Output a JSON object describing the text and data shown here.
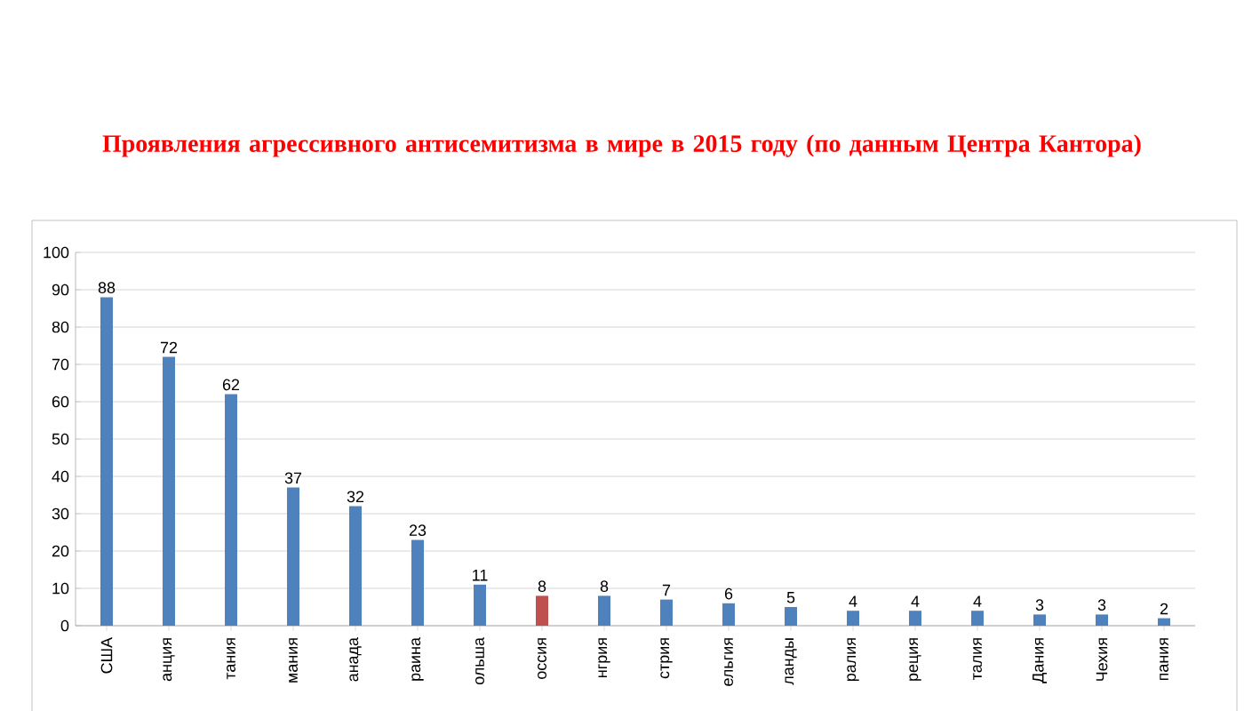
{
  "chart_data": {
    "type": "bar",
    "title": "Проявления агрессивного антисемитизма в мире в 2015 году (по данным Центра Кантора)",
    "categories": [
      "США",
      "анция",
      "тания",
      "мания",
      "анада",
      "раина",
      "ольша",
      "оссия",
      "нгрия",
      "стрия",
      "ельгия",
      "ланды",
      "ралия",
      "реция",
      "талия",
      "Дания",
      "Чехия",
      "пания"
    ],
    "values": [
      88,
      72,
      62,
      37,
      32,
      23,
      11,
      8,
      8,
      7,
      6,
      5,
      4,
      4,
      4,
      3,
      3,
      2
    ],
    "colors": [
      "#4f81bd",
      "#4f81bd",
      "#4f81bd",
      "#4f81bd",
      "#4f81bd",
      "#4f81bd",
      "#4f81bd",
      "#c0504d",
      "#4f81bd",
      "#4f81bd",
      "#4f81bd",
      "#4f81bd",
      "#4f81bd",
      "#4f81bd",
      "#4f81bd",
      "#4f81bd",
      "#4f81bd",
      "#4f81bd"
    ],
    "ylim": [
      0,
      100
    ],
    "yticks": [
      0,
      10,
      20,
      30,
      40,
      50,
      60,
      70,
      80,
      90,
      100
    ],
    "grid": "y",
    "data_labels": true
  }
}
